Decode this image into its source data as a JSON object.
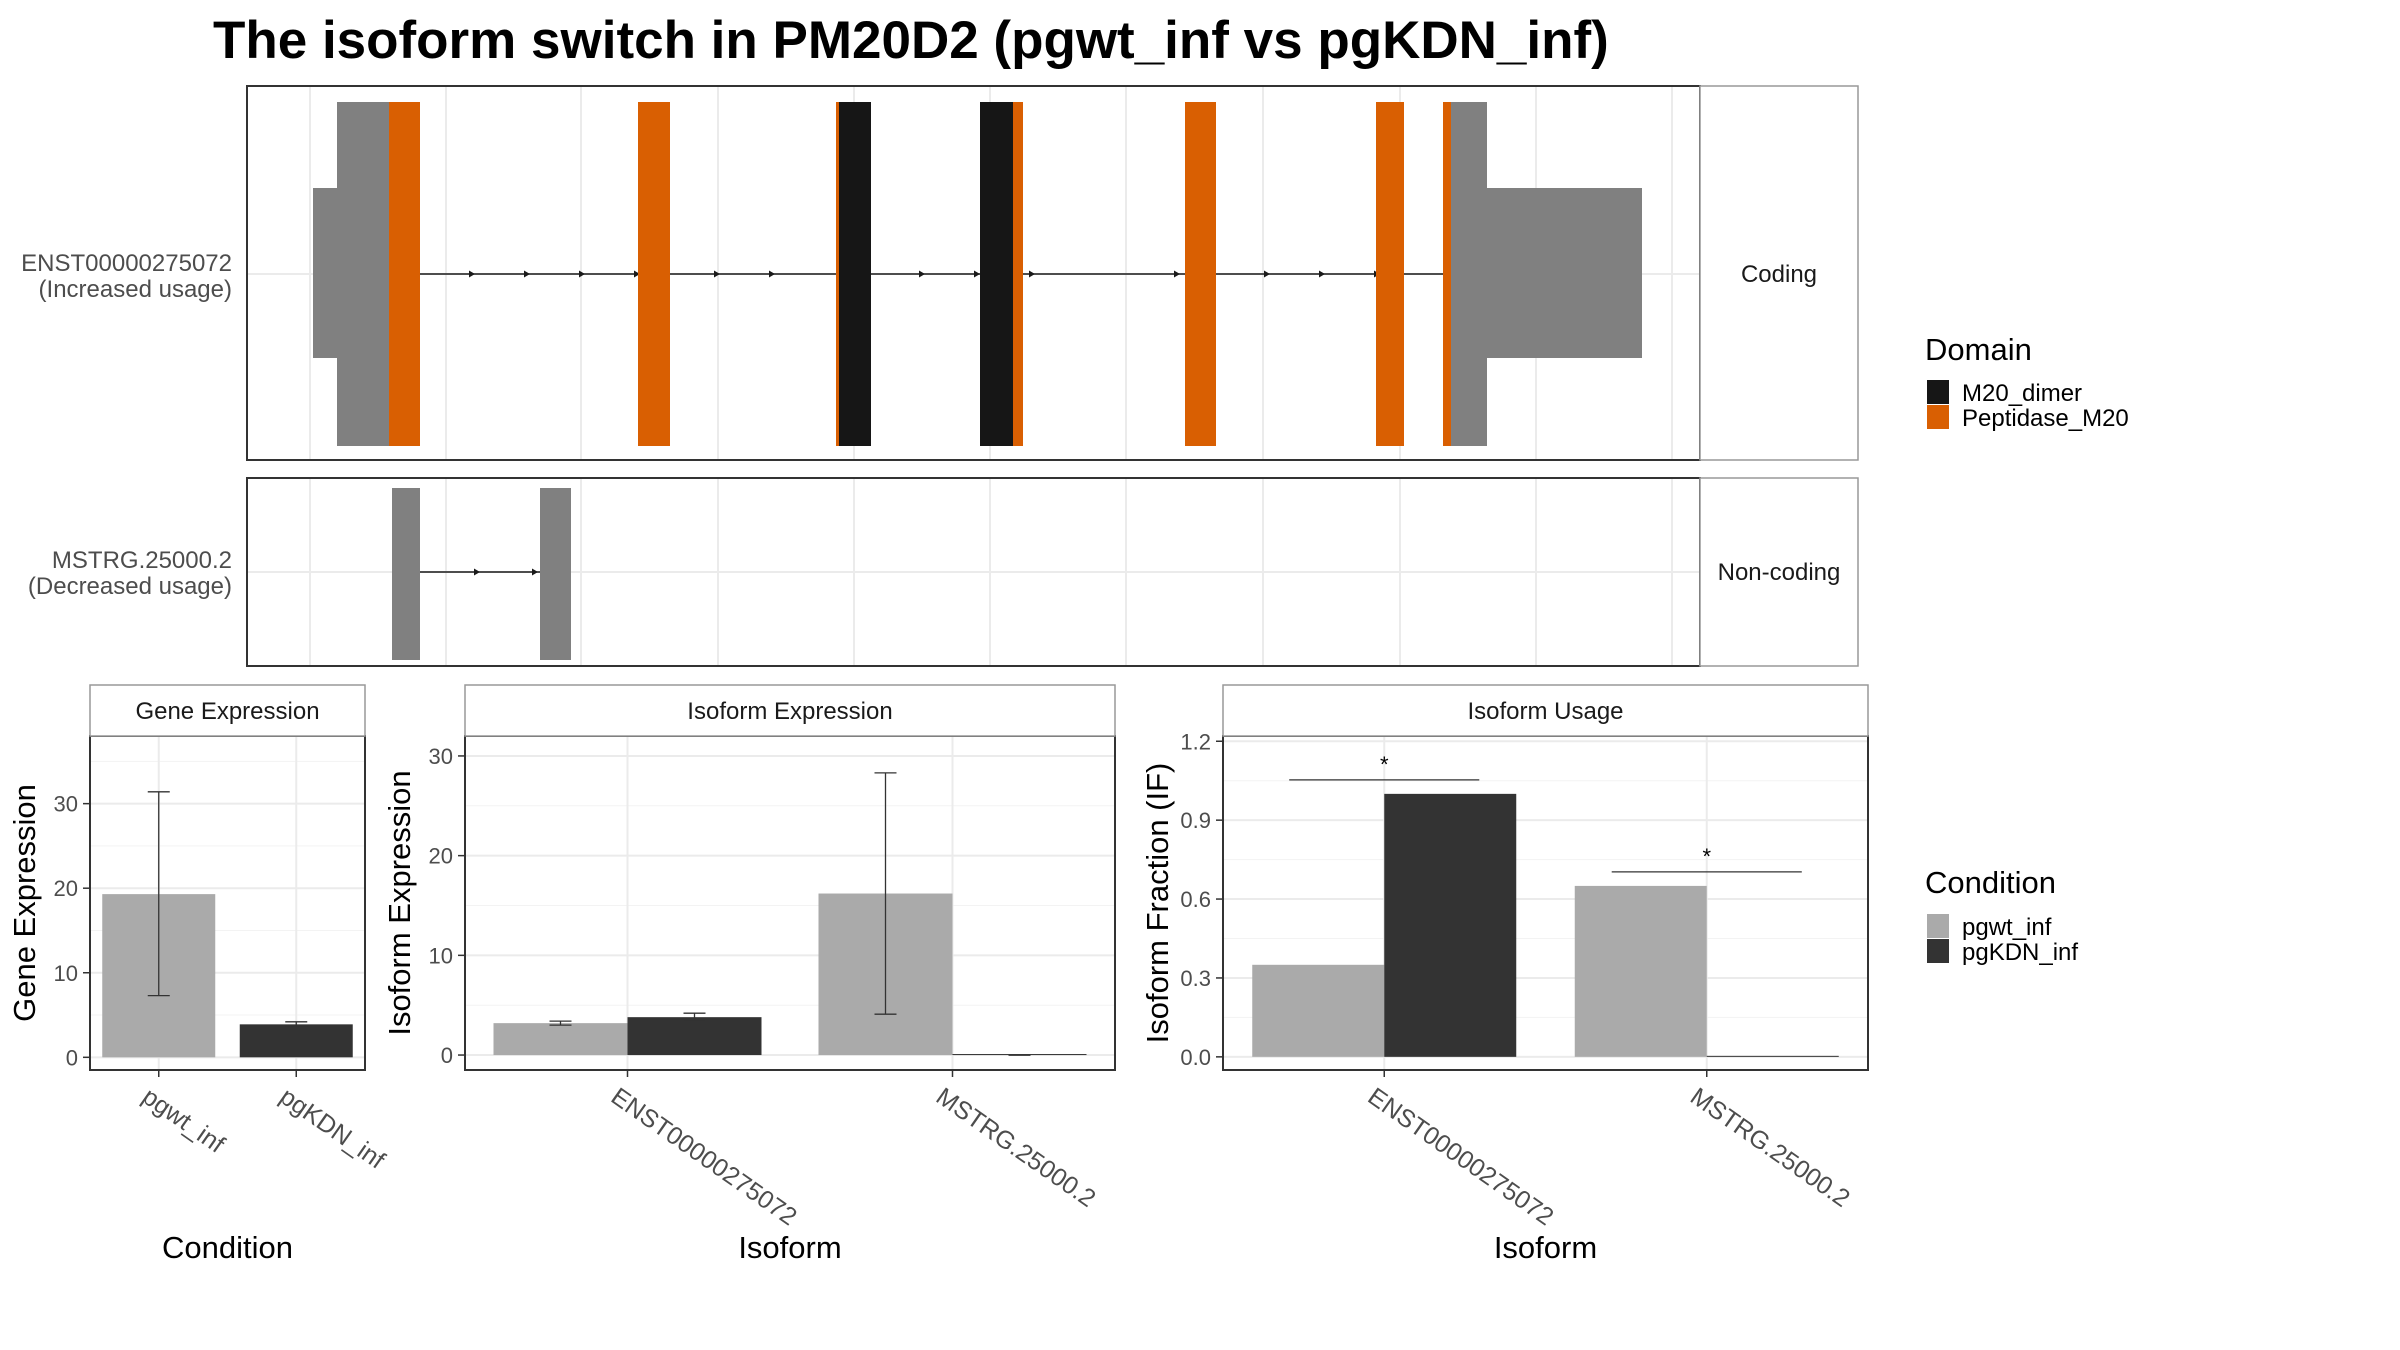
{
  "title": "The isoform switch in PM20D2 (pgwt_inf vs pgKDN_inf)",
  "colors": {
    "pgwt_inf": "#aaaaaa",
    "pgKDN_inf": "#333333",
    "M20_dimer": "#161616",
    "Peptidase_M20": "#d95f02",
    "utr": "#808080",
    "panel_border": "#333333",
    "strip_border": "#999999",
    "grid": "#ebebeb"
  },
  "structure": {
    "isoforms": [
      {
        "id": "ENST00000275072",
        "label": [
          "ENST00000275072",
          "(Increased usage)"
        ],
        "strip": "Coding"
      },
      {
        "id": "MSTRG.25000.2",
        "label": [
          "MSTRG.25000.2",
          "(Decreased usage)"
        ],
        "strip": "Non-coding"
      }
    ],
    "legend": {
      "title": "Domain",
      "items": [
        {
          "name": "M20_dimer",
          "color_key": "M20_dimer"
        },
        {
          "name": "Peptidase_M20",
          "color_key": "Peptidase_M20"
        }
      ]
    }
  },
  "chart_data": [
    {
      "type": "bar",
      "panel": "Gene Expression",
      "strip": "Gene Expression",
      "xlabel": "Condition",
      "ylabel": "Gene Expression",
      "categories": [
        "pgwt_inf",
        "pgKDN_inf"
      ],
      "values": [
        19.3,
        3.9
      ],
      "error_low": [
        7.3,
        3.6
      ],
      "error_high": [
        31.4,
        4.2
      ],
      "ylim": [
        -1.5,
        38
      ],
      "yticks": [
        0,
        10,
        20,
        30
      ]
    },
    {
      "type": "bar",
      "panel": "Isoform Expression",
      "strip": "Isoform Expression",
      "xlabel": "Isoform",
      "ylabel": "Isoform Expression",
      "categories": [
        "ENST00000275072",
        "MSTRG.25000.2"
      ],
      "series": [
        {
          "name": "pgwt_inf",
          "values": [
            3.2,
            16.2
          ],
          "error_low": [
            3.0,
            4.1
          ],
          "error_high": [
            3.4,
            28.3
          ]
        },
        {
          "name": "pgKDN_inf",
          "values": [
            3.8,
            0.0
          ],
          "error_low": [
            3.5,
            0.0
          ],
          "error_high": [
            4.2,
            0.0
          ]
        }
      ],
      "ylim": [
        -1.5,
        32
      ],
      "yticks": [
        0,
        10,
        20,
        30
      ]
    },
    {
      "type": "bar",
      "panel": "Isoform Usage",
      "strip": "Isoform Usage",
      "xlabel": "Isoform",
      "ylabel": "Isoform Fraction (IF)",
      "categories": [
        "ENST00000275072",
        "MSTRG.25000.2"
      ],
      "series": [
        {
          "name": "pgwt_inf",
          "values": [
            0.35,
            0.65
          ]
        },
        {
          "name": "pgKDN_inf",
          "values": [
            1.0,
            0.0
          ]
        }
      ],
      "significance": [
        "*",
        "*"
      ],
      "ylim": [
        -0.05,
        1.22
      ],
      "yticks": [
        0.0,
        0.3,
        0.6,
        0.9,
        1.2
      ],
      "ytick_labels": [
        "0.0",
        "0.3",
        "0.6",
        "0.9",
        "1.2"
      ]
    }
  ],
  "condition_legend": {
    "title": "Condition",
    "items": [
      {
        "name": "pgwt_inf",
        "color_key": "pgwt_inf"
      },
      {
        "name": "pgKDN_inf",
        "color_key": "pgKDN_inf"
      }
    ]
  }
}
